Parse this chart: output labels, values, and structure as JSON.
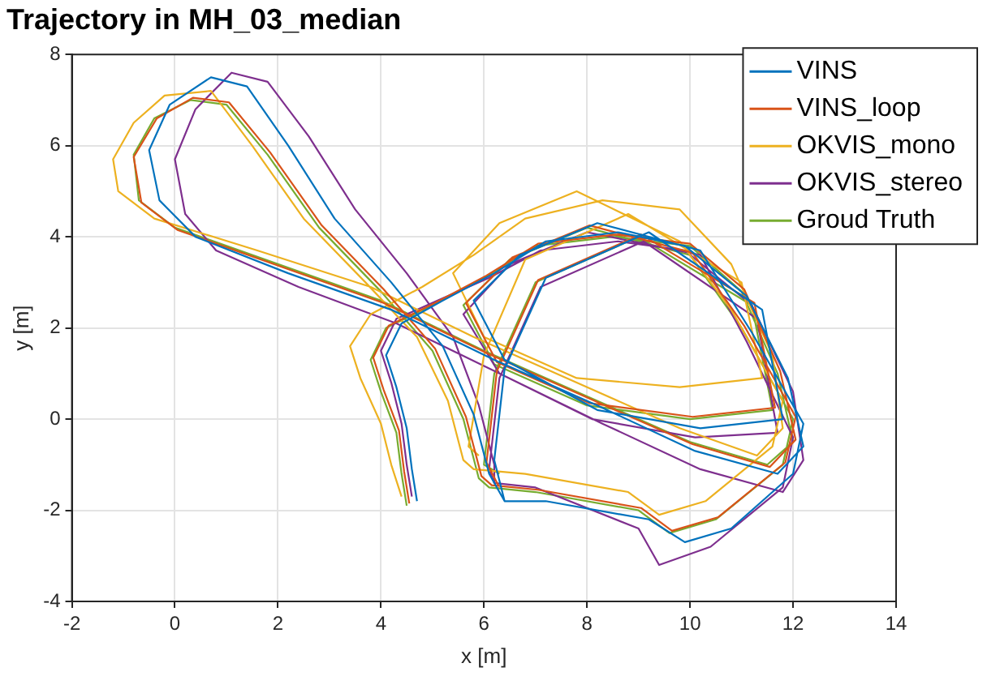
{
  "chart_data": {
    "type": "line",
    "title": "Trajectory in MH_03_median",
    "xlabel": "x [m]",
    "ylabel": "y [m]",
    "xlim": [
      -2,
      14
    ],
    "ylim": [
      -4,
      8
    ],
    "xticks": [
      -2,
      0,
      2,
      4,
      6,
      8,
      10,
      12,
      14
    ],
    "yticks": [
      -4,
      -2,
      0,
      2,
      4,
      6,
      8
    ],
    "grid": true,
    "legend": "top right",
    "marker": "none",
    "line_style": "solid",
    "series": [
      {
        "name": "VINS",
        "color": "#0072bd",
        "x": [
          4.7,
          4.6,
          4.5,
          4.3,
          4.1,
          4.4,
          5.2,
          6.2,
          7.2,
          8.6,
          9.9,
          11.1,
          11.9,
          12.2,
          11.7,
          10.1,
          8.2,
          6.2,
          4.2,
          2.2,
          0.4,
          -0.3,
          -0.5,
          -0.1,
          0.7,
          1.4,
          2.2,
          3.1,
          4.2,
          5.2,
          5.8,
          6.1,
          6.4,
          7.2,
          9.2,
          9.9,
          10.8,
          12.0,
          12.2,
          11.2,
          10.2,
          8.2,
          6.7,
          5.8,
          6.4,
          8.2,
          10.2,
          11.8,
          11.4,
          9.2,
          7.2,
          6.4,
          6.2,
          6.4
        ],
        "values": [
          -1.8,
          -1.1,
          -0.2,
          0.7,
          1.4,
          2.1,
          2.6,
          3.2,
          3.9,
          4.1,
          3.8,
          2.7,
          0.9,
          -0.6,
          -1.2,
          -0.7,
          0.3,
          1.3,
          2.4,
          3.2,
          4.0,
          4.8,
          5.9,
          6.9,
          7.5,
          7.3,
          6.0,
          4.4,
          3.0,
          1.6,
          0.1,
          -1.2,
          -1.8,
          -1.8,
          -2.2,
          -2.7,
          -2.4,
          -1.2,
          -0.1,
          1.9,
          3.7,
          4.3,
          3.6,
          2.6,
          1.3,
          0.2,
          -0.2,
          0.0,
          2.4,
          4.1,
          3.1,
          1.1,
          -0.9,
          -1.8
        ]
      },
      {
        "name": "VINS_loop",
        "color": "#d95319",
        "x": [
          4.55,
          4.45,
          4.35,
          4.05,
          3.85,
          4.15,
          5.05,
          6.05,
          7.05,
          8.55,
          10.0,
          11.05,
          11.75,
          12.05,
          11.55,
          10.05,
          8.05,
          6.05,
          4.05,
          2.05,
          0.05,
          -0.65,
          -0.8,
          -0.35,
          0.35,
          1.05,
          1.85,
          2.85,
          4.05,
          5.05,
          5.65,
          5.95,
          6.15,
          7.05,
          9.05,
          9.65,
          10.55,
          11.85,
          12.05,
          11.05,
          10.05,
          8.05,
          6.55,
          5.65,
          6.25,
          8.05,
          10.05,
          11.65,
          11.25,
          9.05,
          7.05,
          6.25,
          6.05,
          6.3
        ],
        "values": [
          -1.85,
          -1.15,
          -0.25,
          0.65,
          1.35,
          2.05,
          2.55,
          3.15,
          3.85,
          4.05,
          3.85,
          2.85,
          1.05,
          -0.45,
          -1.05,
          -0.55,
          0.45,
          1.45,
          2.55,
          3.35,
          4.15,
          4.75,
          5.75,
          6.6,
          7.05,
          6.95,
          5.85,
          4.25,
          2.85,
          1.55,
          0.05,
          -1.25,
          -1.45,
          -1.55,
          -1.95,
          -2.45,
          -2.15,
          -0.95,
          0.05,
          2.05,
          3.65,
          4.25,
          3.55,
          2.55,
          1.25,
          0.35,
          0.05,
          0.25,
          2.55,
          4.05,
          3.05,
          1.05,
          -0.95,
          -1.5
        ]
      },
      {
        "name": "OKVIS_mono",
        "color": "#edb120",
        "x": [
          4.4,
          4.2,
          4.0,
          3.6,
          3.4,
          3.8,
          4.8,
          5.8,
          6.8,
          8.3,
          9.8,
          10.8,
          11.6,
          11.8,
          11.3,
          9.8,
          7.8,
          5.8,
          3.8,
          1.6,
          -0.4,
          -1.1,
          -1.2,
          -0.8,
          -0.2,
          0.7,
          1.5,
          2.5,
          3.7,
          4.7,
          5.3,
          5.6,
          5.8,
          6.8,
          8.8,
          9.4,
          10.3,
          11.6,
          11.8,
          10.8,
          9.8,
          7.8,
          6.3,
          5.4,
          6.0,
          7.8,
          9.8,
          11.4,
          11.0,
          8.8,
          6.8,
          6.0,
          5.7,
          5.9
        ],
        "values": [
          -1.7,
          -1.0,
          -0.1,
          0.9,
          1.6,
          2.3,
          2.9,
          3.6,
          4.4,
          4.8,
          4.6,
          3.4,
          1.4,
          -0.2,
          -0.8,
          -0.2,
          0.8,
          1.8,
          2.9,
          3.7,
          4.4,
          5.0,
          5.7,
          6.5,
          7.1,
          7.2,
          6.0,
          4.4,
          3.0,
          1.8,
          0.4,
          -0.9,
          -1.1,
          -1.2,
          -1.6,
          -2.1,
          -1.8,
          -0.6,
          0.4,
          2.4,
          3.9,
          5.0,
          4.3,
          3.2,
          1.8,
          0.9,
          0.7,
          0.9,
          3.0,
          4.5,
          3.5,
          1.4,
          -0.6,
          -0.8
        ]
      },
      {
        "name": "OKVIS_stereo",
        "color": "#7e2f8e",
        "x": [
          4.6,
          4.5,
          4.4,
          4.2,
          4.0,
          4.3,
          5.1,
          6.1,
          7.1,
          8.6,
          9.9,
          11.2,
          12.0,
          12.2,
          11.8,
          10.2,
          8.3,
          6.3,
          4.3,
          2.4,
          0.8,
          0.2,
          0.0,
          0.4,
          1.1,
          1.8,
          2.6,
          3.5,
          4.5,
          5.4,
          5.9,
          6.2,
          6.2,
          7.0,
          9.0,
          9.4,
          10.4,
          11.8,
          12.0,
          11.1,
          10.2,
          8.0,
          6.5,
          5.6,
          6.3,
          8.1,
          10.1,
          11.7,
          11.3,
          9.1,
          7.1,
          6.3,
          6.1,
          6.2
        ],
        "values": [
          -1.7,
          -1.0,
          -0.1,
          0.8,
          1.5,
          2.2,
          2.6,
          3.1,
          3.7,
          3.9,
          3.7,
          2.5,
          0.6,
          -0.9,
          -1.6,
          -1.1,
          -0.1,
          1.0,
          2.1,
          2.9,
          3.7,
          4.5,
          5.7,
          6.8,
          7.6,
          7.4,
          6.2,
          4.6,
          3.2,
          1.8,
          0.3,
          -1.0,
          -1.4,
          -1.5,
          -2.4,
          -3.2,
          -2.8,
          -1.5,
          -0.4,
          1.7,
          3.6,
          4.1,
          3.4,
          2.3,
          1.0,
          0.0,
          -0.4,
          -0.3,
          2.2,
          3.9,
          2.9,
          0.9,
          -1.1,
          -1.4
        ]
      },
      {
        "name": "Groud Truth",
        "color": "#77ac30",
        "x": [
          4.5,
          4.4,
          4.3,
          4.0,
          3.8,
          4.1,
          5.0,
          6.0,
          7.0,
          8.5,
          10.0,
          11.0,
          11.7,
          12.0,
          11.5,
          10.0,
          8.0,
          6.0,
          4.0,
          2.0,
          0.0,
          -0.7,
          -0.8,
          -0.4,
          0.3,
          1.0,
          1.8,
          2.8,
          4.0,
          5.0,
          5.6,
          5.9,
          6.1,
          7.0,
          9.0,
          9.6,
          10.5,
          11.8,
          12.0,
          11.0,
          10.0,
          8.0,
          6.5,
          5.6,
          6.2,
          8.0,
          10.0,
          11.6,
          11.2,
          9.0,
          7.0,
          6.2,
          6.0,
          6.3
        ],
        "values": [
          -1.9,
          -1.2,
          -0.3,
          0.6,
          1.3,
          2.0,
          2.5,
          3.1,
          3.8,
          4.0,
          3.8,
          2.8,
          1.0,
          -0.5,
          -1.0,
          -0.5,
          0.5,
          1.5,
          2.6,
          3.4,
          4.2,
          4.8,
          5.8,
          6.6,
          7.0,
          6.9,
          5.8,
          4.2,
          2.8,
          1.5,
          0.0,
          -1.3,
          -1.5,
          -1.6,
          -2.0,
          -2.5,
          -2.2,
          -1.0,
          0.0,
          2.0,
          3.6,
          4.2,
          3.5,
          2.5,
          1.2,
          0.3,
          0.0,
          0.2,
          2.5,
          4.0,
          3.0,
          1.0,
          -1.0,
          -1.2
        ]
      }
    ]
  }
}
